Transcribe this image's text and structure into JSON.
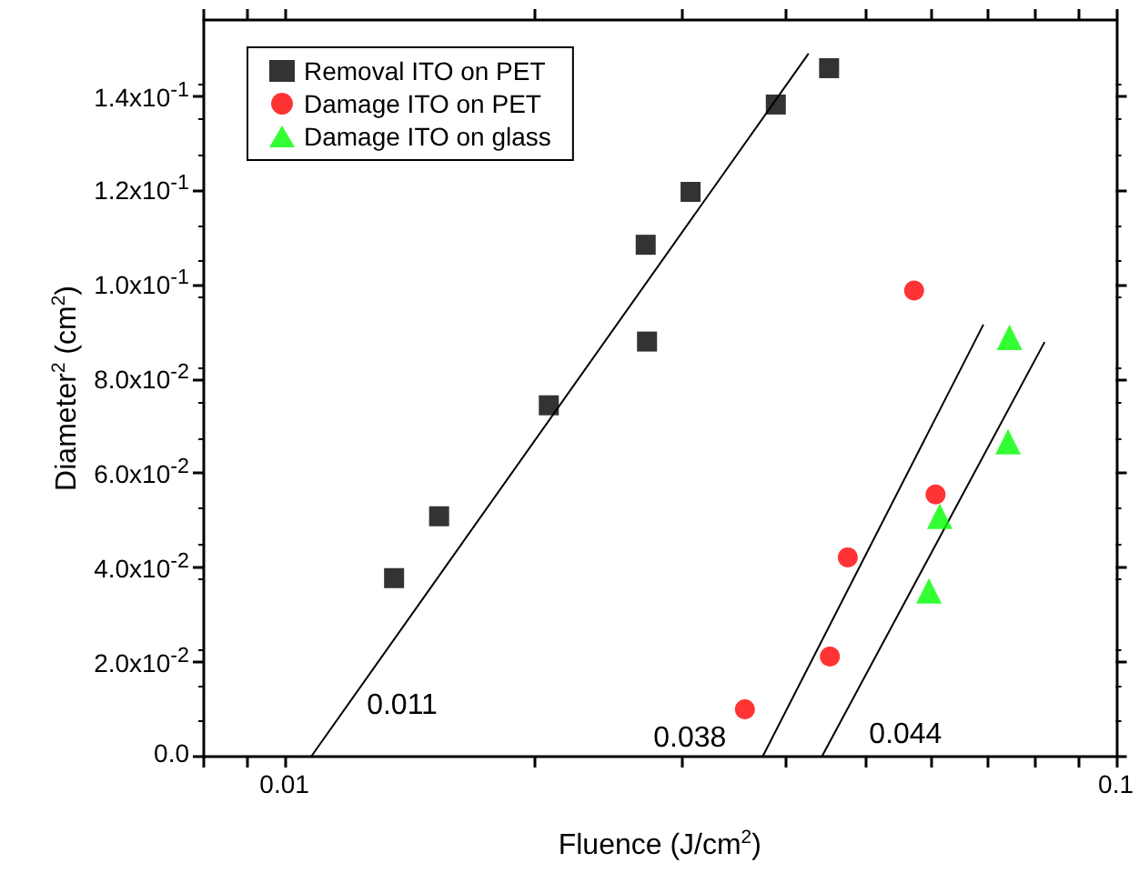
{
  "chart_data": {
    "type": "scatter",
    "xlabel": "Fluence (J/cm$^{2}$)",
    "ylabel": "Diameter$^{2}$ (cm$^{2}$)",
    "log": "x",
    "legend": "top left",
    "grid": false,
    "xlim": [
      0.008,
      0.1
    ],
    "xticks": [
      {
        "value": 0.008,
        "label": null
      },
      {
        "value": 0.009,
        "label": null
      },
      0.01,
      {
        "value": 0.02,
        "label": null
      },
      {
        "value": 0.03,
        "label": null
      },
      {
        "value": 0.04,
        "label": null
      },
      {
        "value": 0.05,
        "label": null
      },
      {
        "value": 0.06,
        "label": null
      },
      {
        "value": 0.07,
        "label": null
      },
      {
        "value": 0.08,
        "label": null
      },
      {
        "value": 0.09,
        "label": null
      },
      0.1
    ],
    "ylim": [
      0,
      0.156
    ],
    "yticks": [
      {
        "value": 0,
        "label": "0.0"
      },
      {
        "value": 0.02,
        "label": "2.0x10$^{-2}$"
      },
      {
        "value": 0.04,
        "label": "4.0x10$^{-2}$"
      },
      {
        "value": 0.06,
        "label": "6.0x10$^{-2}$"
      },
      {
        "value": 0.08,
        "label": "8.0x10$^{-2}$"
      },
      {
        "value": 0.1,
        "label": "1.0x10$^{-1}$"
      },
      {
        "value": 0.12,
        "label": "1.2x10$^{-1}$"
      },
      {
        "value": 0.14,
        "label": "1.4x10$^{-1}$"
      }
    ],
    "series": [
      {
        "name": "Removal ITO on PET",
        "color": "#000000",
        "marker": "square",
        "x": [
          0.01355,
          0.01535,
          0.0208,
          0.0272,
          0.0273,
          0.0308,
          0.039,
          0.0452
        ],
        "values": [
          0.0378,
          0.0509,
          0.0744,
          0.1084,
          0.0879,
          0.1196,
          0.1381,
          0.1458
        ]
      },
      {
        "name": "Damage ITO on PET",
        "color": "#ff0000",
        "marker": "circle",
        "x": [
          0.0358,
          0.0453,
          0.0476,
          0.0572,
          0.0607
        ],
        "values": [
          0.01,
          0.0212,
          0.0422,
          0.0987,
          0.0555
        ]
      },
      {
        "name": "Damage ITO on glass",
        "color": "#00ff00",
        "marker": "triangle",
        "x": [
          0.0745,
          0.0742,
          0.0614,
          0.0596
        ],
        "values": [
          0.0888,
          0.0667,
          0.0509,
          0.0351
        ]
      },
      {
        "type": "line",
        "color": "#000000",
        "marker": "none",
        "x": [
          0.01077,
          0.0427
        ],
        "values": [
          0,
          0.1489
        ]
      },
      {
        "type": "line",
        "color": "#000000",
        "marker": "none",
        "x": [
          0.0376,
          0.0693
        ],
        "values": [
          0,
          0.0915
        ]
      },
      {
        "type": "line",
        "color": "#000000",
        "marker": "none",
        "x": [
          0.0443,
          0.0821
        ],
        "values": [
          0,
          0.0878
        ]
      }
    ],
    "annotations": [
      "0.011",
      "0.038",
      "0.044"
    ]
  }
}
